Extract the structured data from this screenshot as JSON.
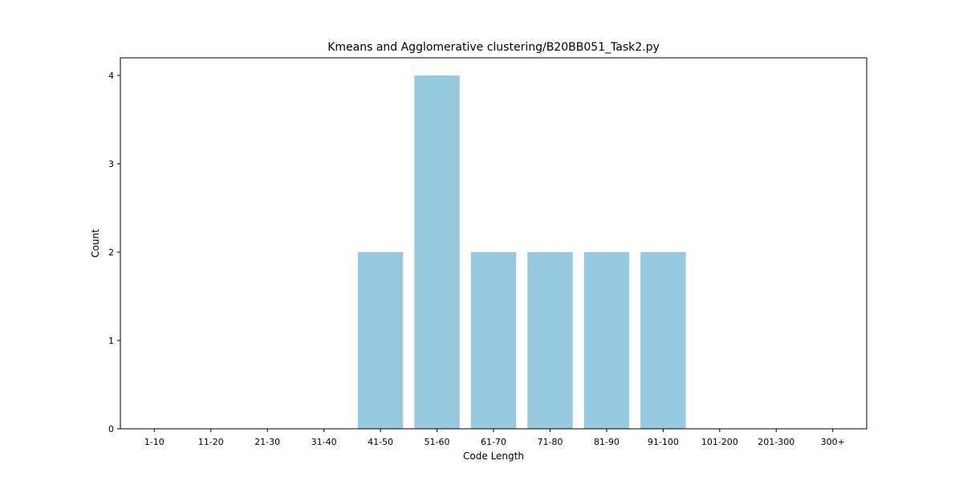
{
  "chart_data": {
    "type": "bar",
    "title": "Kmeans and Agglomerative clustering/B20BB051_Task2.py",
    "xlabel": "Code Length",
    "ylabel": "Count",
    "categories": [
      "1-10",
      "11-20",
      "21-30",
      "31-40",
      "41-50",
      "51-60",
      "61-70",
      "71-80",
      "81-90",
      "91-100",
      "101-200",
      "201-300",
      "300+"
    ],
    "values": [
      0,
      0,
      0,
      0,
      2,
      4,
      2,
      2,
      2,
      2,
      0,
      0,
      0
    ],
    "ylim": [
      0,
      4.2
    ],
    "yticks": [
      "0",
      "1",
      "2",
      "3",
      "4"
    ],
    "bar_color": "#96c9dd",
    "grid": false,
    "legend": "none"
  }
}
